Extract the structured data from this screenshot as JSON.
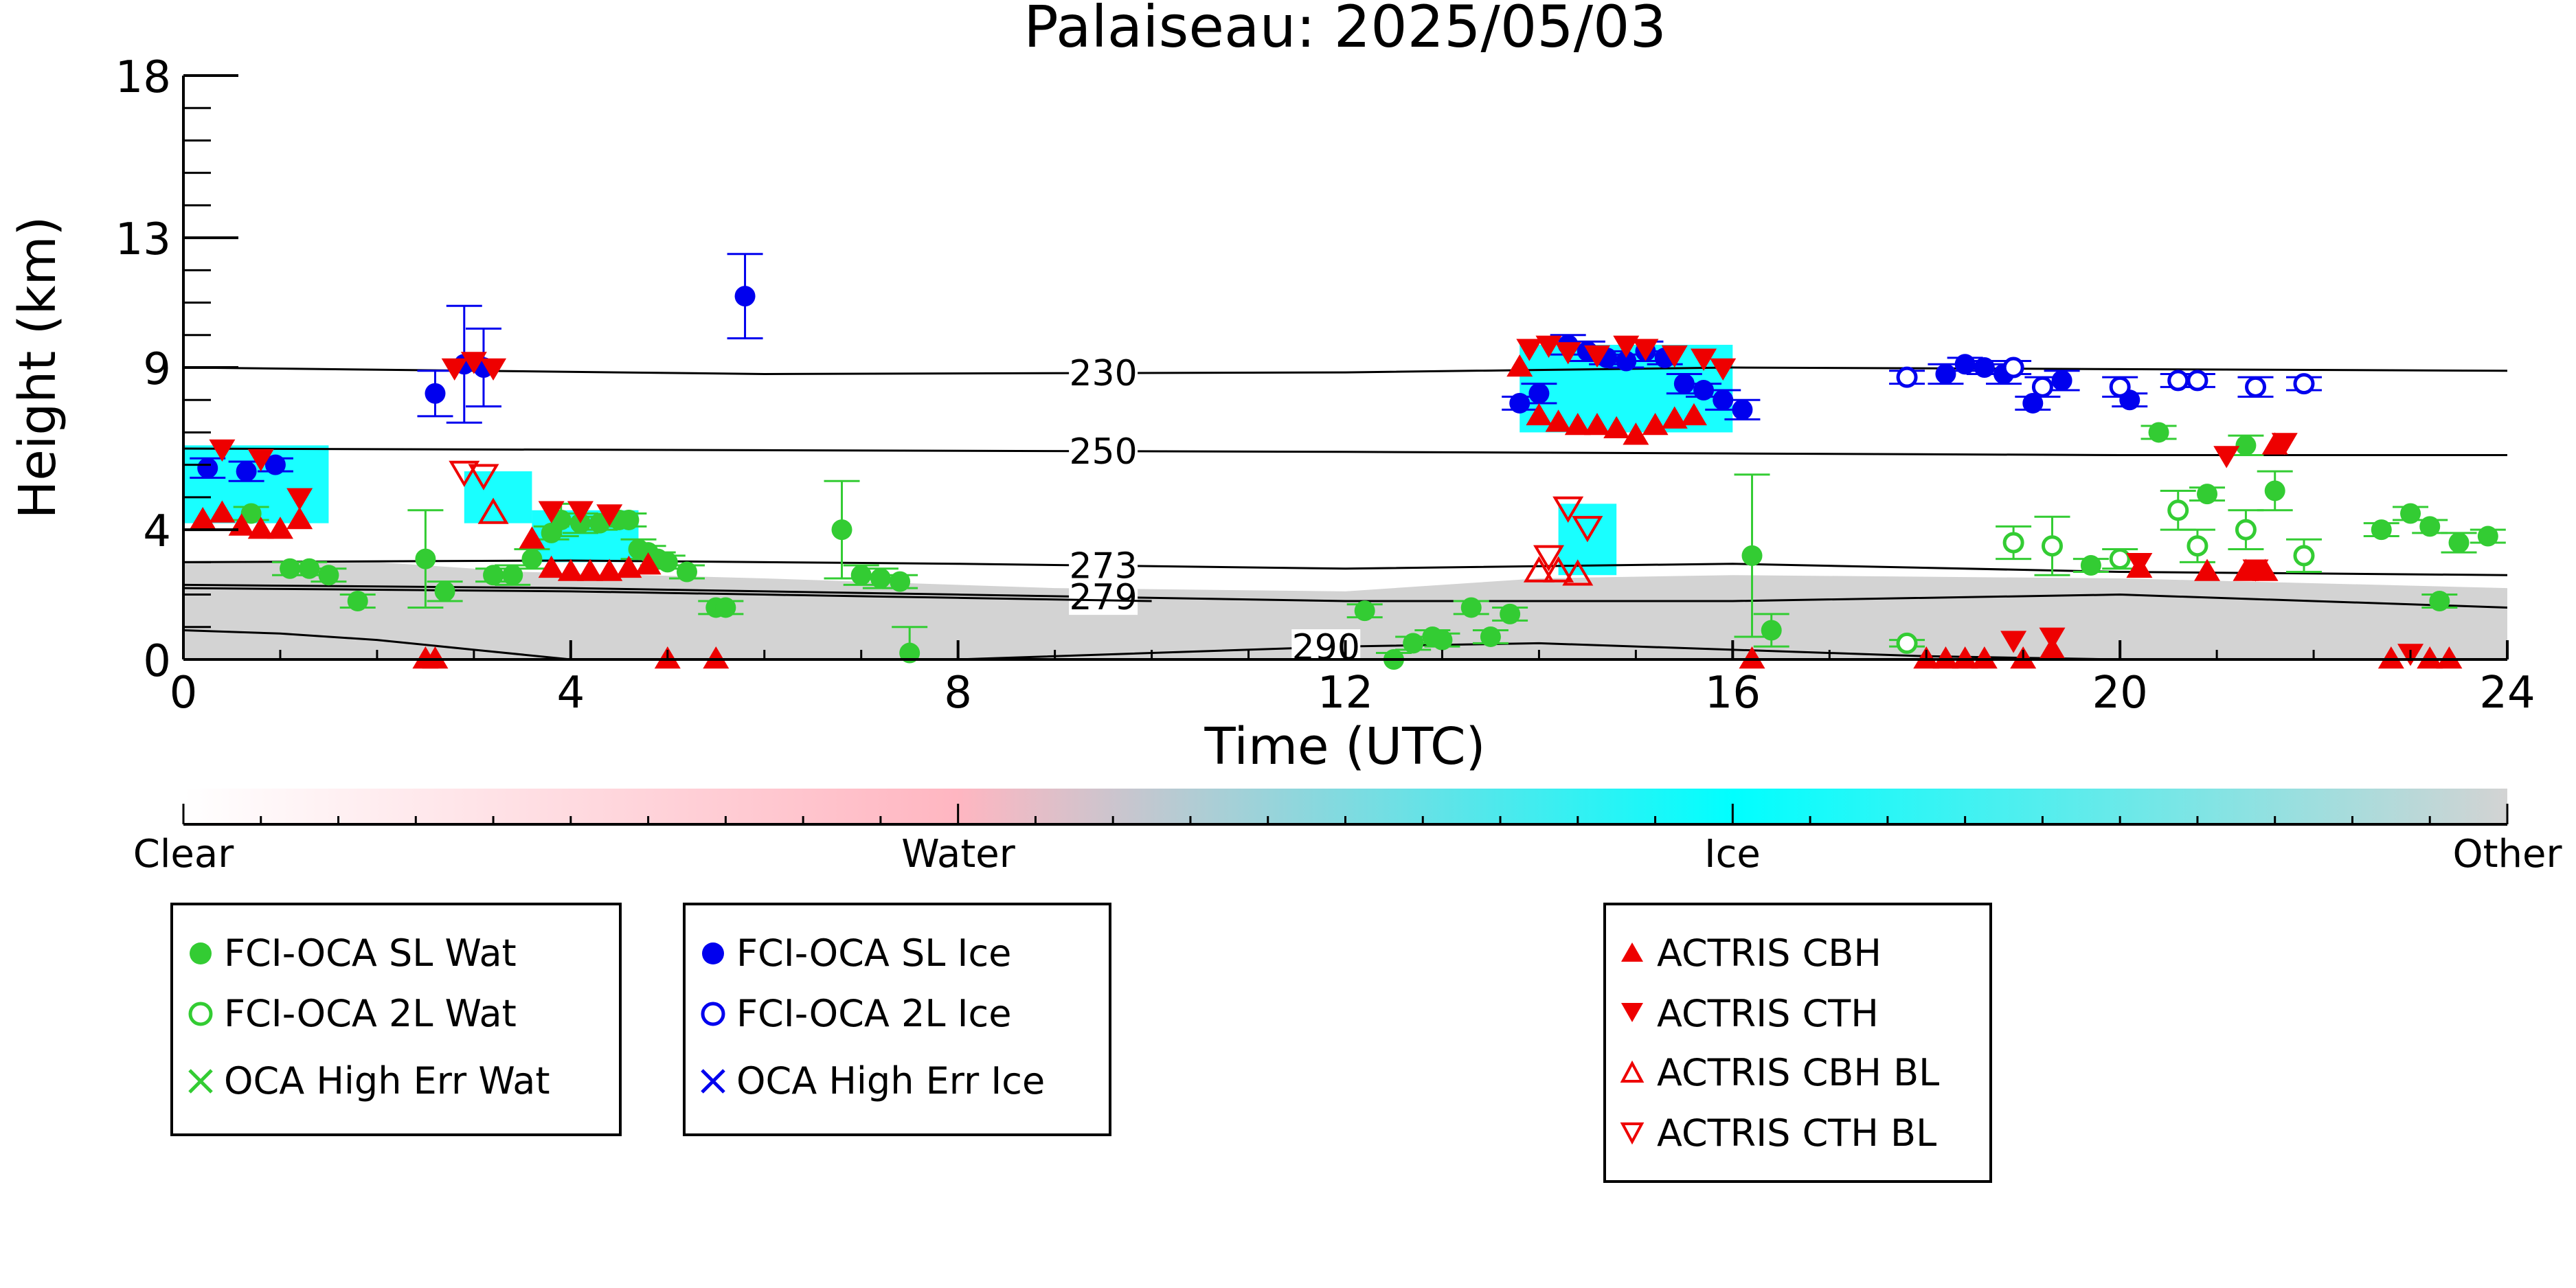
{
  "chart_data": {
    "type": "scatter",
    "title": "Palaiseau: 2025/05/03",
    "xlabel": "Time (UTC)",
    "ylabel": "Height (km)",
    "xlim": [
      0,
      24
    ],
    "ylim": [
      0,
      18
    ],
    "x_ticks": [
      0,
      4,
      8,
      12,
      16,
      20,
      24
    ],
    "y_ticks": [
      0,
      4,
      9,
      13,
      18
    ],
    "grid": false,
    "background_classification": {
      "classes": [
        "Clear",
        "Water",
        "Ice",
        "Other"
      ],
      "colors": {
        "Clear": "#ffffff",
        "Water": "#ffb6c1",
        "Ice": "#00ffff",
        "Other": "#d3d3d3"
      },
      "regions": [
        {
          "class": "Other",
          "x0": 0,
          "x1": 24,
          "ytop": [
            [
              0,
              3
            ],
            [
              2,
              3
            ],
            [
              3.5,
              2.7
            ],
            [
              6,
              2.5
            ],
            [
              9,
              2.2
            ],
            [
              12,
              2.1
            ],
            [
              14,
              2.5
            ],
            [
              16,
              2.6
            ],
            [
              20,
              2.5
            ],
            [
              24,
              2.2
            ]
          ]
        },
        {
          "class": "Ice",
          "x0": 0,
          "x1": 1.5,
          "y0": 4.2,
          "y1": 6.6
        },
        {
          "class": "Ice",
          "x0": 2.9,
          "x1": 3.6,
          "y0": 4.2,
          "y1": 5.8
        },
        {
          "class": "Ice",
          "x0": 3.6,
          "x1": 4.7,
          "y0": 3.0,
          "y1": 4.6
        },
        {
          "class": "Ice",
          "x0": 13.8,
          "x1": 16.0,
          "y0": 7.0,
          "y1": 9.7
        },
        {
          "class": "Ice",
          "x0": 14.2,
          "x1": 14.8,
          "y0": 2.6,
          "y1": 4.8
        }
      ]
    },
    "isotherms": [
      {
        "label": "230",
        "x": [
          0,
          6,
          12,
          16,
          20,
          24
        ],
        "y": [
          9.0,
          8.8,
          8.85,
          9.0,
          8.95,
          8.9
        ],
        "label_x": 9.5
      },
      {
        "label": "250",
        "x": [
          0,
          6,
          12,
          16,
          20,
          24
        ],
        "y": [
          6.5,
          6.45,
          6.4,
          6.35,
          6.3,
          6.3
        ],
        "label_x": 9.5
      },
      {
        "label": "273",
        "x": [
          0,
          4,
          8,
          12,
          16,
          20,
          24
        ],
        "y": [
          3.0,
          3.05,
          2.95,
          2.8,
          2.95,
          2.7,
          2.6
        ],
        "label_x": 9.5
      },
      {
        "label": "279",
        "x": [
          0,
          4,
          8,
          12,
          16,
          20,
          24
        ],
        "y": [
          2.3,
          2.2,
          2.0,
          1.8,
          1.8,
          2.0,
          1.6
        ],
        "label_x": 9.5
      },
      {
        "label": "290",
        "x": [
          0,
          1,
          2,
          3,
          4,
          8,
          12,
          14,
          16,
          18,
          20,
          22,
          24
        ],
        "y": [
          0.9,
          0.8,
          0.6,
          0.3,
          0.0,
          0.0,
          0.4,
          0.5,
          0.3,
          0.1,
          0.0,
          0.0,
          0.0
        ],
        "label_x": 11.8
      },
      {
        "label": "",
        "x": [
          0,
          2,
          4,
          6,
          8,
          10
        ],
        "y": [
          2.2,
          2.15,
          2.1,
          2.0,
          1.9,
          1.8
        ]
      }
    ],
    "series": [
      {
        "name": "FCI-OCA SL Wat",
        "color": "#33cc33",
        "marker": "filled-circle",
        "x": [
          0.7,
          1.1,
          1.3,
          1.5,
          1.8,
          2.5,
          2.7,
          3.2,
          3.4,
          3.6,
          3.8,
          3.9,
          4.1,
          4.3,
          4.5,
          4.6,
          4.7,
          4.8,
          4.9,
          5.0,
          5.2,
          5.5,
          5.6,
          6.8,
          7.0,
          7.2,
          7.4,
          7.5,
          12.2,
          12.5,
          12.7,
          12.9,
          13.0,
          13.3,
          13.5,
          13.7,
          16.2,
          16.4,
          19.7,
          20.4,
          20.9,
          21.3,
          21.6,
          22.7,
          23.0,
          23.2,
          23.3,
          23.5,
          23.8
        ],
        "y": [
          4.5,
          2.8,
          2.8,
          2.6,
          1.8,
          3.1,
          2.1,
          2.6,
          2.6,
          3.1,
          3.9,
          4.3,
          4.2,
          4.2,
          4.3,
          4.3,
          3.4,
          3.3,
          3.1,
          3.0,
          2.7,
          1.6,
          1.6,
          4.0,
          2.6,
          2.5,
          2.4,
          0.2,
          1.5,
          0.0,
          0.5,
          0.7,
          0.6,
          1.6,
          0.7,
          1.4,
          3.2,
          0.9,
          2.9,
          7.0,
          5.1,
          6.6,
          5.2,
          4.0,
          4.5,
          4.1,
          1.8,
          3.6,
          3.8
        ],
        "err": [
          0.2,
          0.2,
          0.2,
          0.2,
          0.2,
          1.5,
          0.3,
          0.2,
          0.3,
          0.3,
          0.2,
          0.5,
          0.3,
          0.2,
          0.2,
          0.2,
          0.3,
          0.2,
          0.2,
          0.2,
          0.2,
          0.2,
          0.2,
          1.5,
          0.3,
          0.3,
          0.2,
          0.8,
          0.2,
          0.2,
          0.2,
          0.2,
          0.2,
          0.2,
          0.2,
          0.2,
          2.5,
          0.5,
          0.2,
          0.2,
          0.2,
          0.3,
          0.6,
          0.2,
          0.2,
          0.2,
          0.2,
          0.3,
          0.2
        ]
      },
      {
        "name": "FCI-OCA 2L Wat",
        "color": "#33cc33",
        "marker": "open-circle",
        "x": [
          17.8,
          18.9,
          19.3,
          20.0,
          20.6,
          20.8,
          21.3,
          21.9
        ],
        "y": [
          0.5,
          3.6,
          3.5,
          3.1,
          4.6,
          3.5,
          4.0,
          3.2
        ],
        "err": [
          0.1,
          0.5,
          0.9,
          0.3,
          0.6,
          0.5,
          0.6,
          0.5
        ]
      },
      {
        "name": "OCA High Err Wat",
        "color": "#33cc33",
        "marker": "x",
        "x": [],
        "y": []
      },
      {
        "name": "FCI-OCA SL Ice",
        "color": "#0000ee",
        "marker": "filled-circle",
        "x": [
          0.25,
          0.65,
          0.95,
          2.6,
          2.9,
          3.1,
          5.8,
          13.8,
          14.0,
          14.3,
          14.5,
          14.7,
          14.9,
          15.1,
          15.3,
          15.5,
          15.7,
          15.9,
          16.1,
          18.2,
          18.4,
          18.6,
          18.8,
          19.1,
          19.4,
          20.1
        ],
        "y": [
          5.9,
          5.8,
          6.0,
          8.2,
          9.1,
          9.0,
          11.2,
          7.9,
          8.2,
          9.7,
          9.5,
          9.3,
          9.2,
          9.5,
          9.3,
          8.5,
          8.3,
          8.0,
          7.7,
          8.8,
          9.1,
          9.0,
          8.8,
          7.9,
          8.6,
          8.0
        ],
        "err": [
          0.3,
          0.3,
          0.2,
          0.7,
          1.8,
          1.2,
          1.3,
          0.2,
          0.3,
          0.3,
          0.3,
          0.2,
          0.2,
          0.3,
          0.2,
          0.3,
          0.2,
          0.3,
          0.3,
          0.3,
          0.2,
          0.2,
          0.3,
          0.2,
          0.3,
          0.2
        ]
      },
      {
        "name": "FCI-OCA 2L Ice",
        "color": "#0000ee",
        "marker": "open-circle",
        "x": [
          17.8,
          18.9,
          19.2,
          20.0,
          20.6,
          20.8,
          21.4,
          21.9
        ],
        "y": [
          8.7,
          9.0,
          8.4,
          8.4,
          8.6,
          8.6,
          8.4,
          8.5
        ],
        "err": [
          0.2,
          0.2,
          0.3,
          0.3,
          0.2,
          0.2,
          0.3,
          0.2
        ]
      },
      {
        "name": "OCA High Err Ice",
        "color": "#0000ee",
        "marker": "x",
        "x": [],
        "y": []
      },
      {
        "name": "ACTRIS CBH",
        "color": "#ee0000",
        "marker": "filled-triangle-up",
        "x": [
          0.2,
          0.4,
          0.6,
          0.8,
          1.0,
          1.2,
          2.5,
          2.6,
          3.6,
          3.8,
          4.0,
          4.2,
          4.4,
          4.6,
          4.8,
          5.0,
          5.5,
          13.8,
          14.0,
          14.2,
          14.4,
          14.6,
          14.8,
          15.0,
          15.2,
          15.4,
          15.6,
          16.2,
          18.0,
          18.2,
          18.4,
          18.6,
          19.0,
          19.3,
          20.2,
          20.9,
          21.3,
          21.5,
          21.6,
          22.8,
          23.2,
          23.4
        ],
        "y": [
          4.3,
          4.5,
          4.1,
          4.0,
          4.0,
          4.3,
          0.0,
          0.0,
          3.7,
          2.8,
          2.7,
          2.7,
          2.7,
          2.8,
          2.9,
          0.0,
          0.0,
          9.0,
          7.5,
          7.3,
          7.2,
          7.2,
          7.1,
          6.9,
          7.2,
          7.4,
          7.5,
          0.0,
          0.0,
          0.0,
          0.0,
          0.0,
          0.0,
          0.3,
          2.8,
          2.7,
          2.7,
          2.7,
          6.6,
          0.0,
          0.0,
          0.0
        ]
      },
      {
        "name": "ACTRIS CTH",
        "color": "#ee0000",
        "marker": "filled-triangle-down",
        "x": [
          0.4,
          0.8,
          1.2,
          2.8,
          3.0,
          3.2,
          3.8,
          4.1,
          4.4,
          13.9,
          14.1,
          14.3,
          14.6,
          14.9,
          15.1,
          15.4,
          15.7,
          15.9,
          18.9,
          19.3,
          20.2,
          21.1,
          21.4,
          21.7,
          23.0
        ],
        "y": [
          6.5,
          6.2,
          5.0,
          9.0,
          9.2,
          9.0,
          4.6,
          4.6,
          4.5,
          9.6,
          9.7,
          9.5,
          9.4,
          9.7,
          9.6,
          9.4,
          9.3,
          9.0,
          0.6,
          0.7,
          3.0,
          6.3,
          2.8,
          6.7,
          0.2
        ]
      },
      {
        "name": "ACTRIS CBH BL",
        "color": "#ee0000",
        "marker": "open-triangle-up",
        "x": [
          3.2,
          14.0,
          14.2,
          14.4
        ],
        "y": [
          4.5,
          2.7,
          2.7,
          2.6
        ]
      },
      {
        "name": "ACTRIS CTH BL",
        "color": "#ee0000",
        "marker": "open-triangle-down",
        "x": [
          2.9,
          3.1,
          14.1,
          14.3,
          14.5
        ],
        "y": [
          5.8,
          5.7,
          3.2,
          4.7,
          4.1
        ]
      }
    ],
    "colorbar": {
      "labels": [
        "Clear",
        "Water",
        "Ice",
        "Other"
      ],
      "colors": [
        "#ffffff",
        "#ffb6c1",
        "#00ffff",
        "#d3d3d3"
      ]
    },
    "legend_placement": "bottom",
    "legend_groups": [
      [
        "FCI-OCA SL Wat",
        "FCI-OCA 2L Wat",
        "OCA High Err Wat"
      ],
      [
        "FCI-OCA SL Ice",
        "FCI-OCA 2L Ice",
        "OCA High Err Ice"
      ],
      [
        "ACTRIS CBH",
        "ACTRIS CTH",
        "ACTRIS CBH BL",
        "ACTRIS CTH BL"
      ]
    ]
  }
}
